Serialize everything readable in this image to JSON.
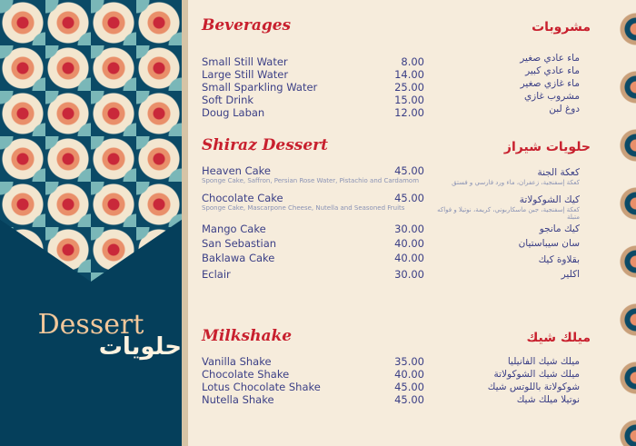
{
  "panel": {
    "title_en": "Dessert",
    "title_ar": "حلويات"
  },
  "sections": [
    {
      "title_en": "Beverages",
      "title_ar": "مشروبات",
      "items": [
        {
          "name": "Small Still Water",
          "ar": "ماء عادي صغير",
          "price": "8.00"
        },
        {
          "name": "Large Still Water",
          "ar": "ماء عادي كبير",
          "price": "14.00"
        },
        {
          "name": "Small Sparkling Water",
          "ar": "ماء غازي صغير",
          "price": "25.00"
        },
        {
          "name": "Soft Drink",
          "ar": "مشروب غازي",
          "price": "15.00"
        },
        {
          "name": "Doug Laban",
          "ar": "دوغ لبن",
          "price": "12.00"
        }
      ]
    },
    {
      "title_en": "Shiraz Dessert",
      "title_ar": "حلويات شيراز",
      "items": [
        {
          "name": "Heaven Cake",
          "desc": "Sponge Cake, Saffron, Persian Rose Water, Pistachio and Cardamom",
          "ar": "كعكة الجنة",
          "ar_desc": "كعكة إسفنجية، زعفران، ماء ورد فارسي و فستق",
          "price": "45.00"
        },
        {
          "name": "Chocolate Cake",
          "desc": "Sponge Cake, Mascarpone Cheese, Nutella and Seasoned Fruits",
          "ar": "كيك الشوكولاتة",
          "ar_desc": "كعكة إسفنجية، جبن ماسكاربوني، كريمة، نوتيلا و فواكه متبلة",
          "price": "45.00"
        },
        {
          "name": "Mango Cake",
          "ar": "كيك مانجو",
          "price": "30.00"
        },
        {
          "name": "San Sebastian",
          "ar": "سان سيباستيان",
          "price": "40.00"
        },
        {
          "name": "Baklawa Cake",
          "ar": "بقلاوة كيك",
          "price": "40.00"
        },
        {
          "name": "Eclair",
          "ar": "اكلير",
          "price": "30.00"
        }
      ]
    },
    {
      "title_en": "Milkshake",
      "title_ar": "ميلك شيك",
      "items": [
        {
          "name": "Vanilla Shake",
          "ar": "ميلك شيك الفانيليا",
          "price": "35.00"
        },
        {
          "name": "Chocolate Shake",
          "ar": "ميلك شيك الشوكولاتة",
          "price": "40.00"
        },
        {
          "name": "Lotus Chocolate Shake",
          "ar": "شوكولاتة باللوتس شيك",
          "price": "45.00"
        },
        {
          "name": "Nutella Shake",
          "ar": "نوتيلا ميلك شيك",
          "price": "45.00"
        }
      ]
    }
  ]
}
